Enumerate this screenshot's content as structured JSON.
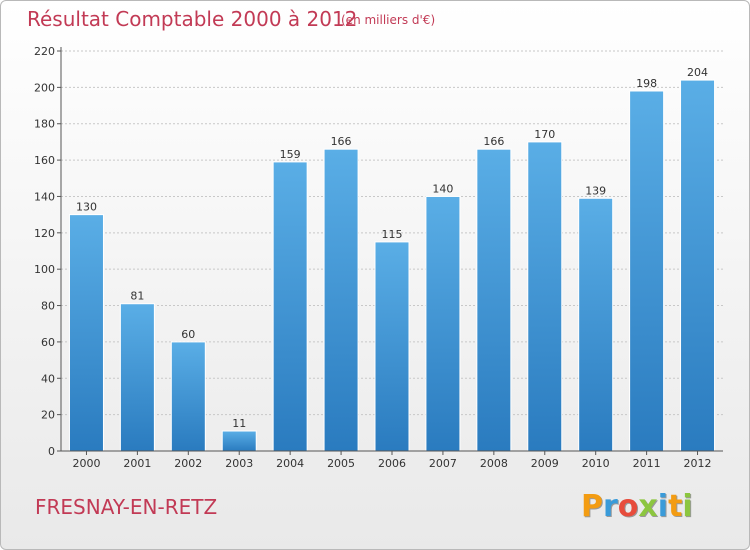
{
  "header": {
    "title": "Résultat Comptable 2000 à 2012",
    "subtitle": "(en milliers d'€)"
  },
  "footer": {
    "commune": "FRESNAY-EN-RETZ",
    "logo_letters": [
      "P",
      "r",
      "o",
      "x",
      "i",
      "t",
      "i"
    ],
    "logo_colors": [
      "#f39c12",
      "#3a9bd9",
      "#e74c3c",
      "#8cc63f",
      "#3a9bd9",
      "#f39c12",
      "#8cc63f"
    ]
  },
  "colors": {
    "bar_top": "#5aaee6",
    "bar_bottom": "#2a7bbf",
    "accent": "#c23a55",
    "grid": "#c8c8c8"
  },
  "chart_data": {
    "type": "bar",
    "categories": [
      "2000",
      "2001",
      "2002",
      "2003",
      "2004",
      "2005",
      "2006",
      "2007",
      "2008",
      "2009",
      "2010",
      "2011",
      "2012"
    ],
    "values": [
      130,
      81,
      60,
      11,
      159,
      166,
      115,
      140,
      166,
      170,
      139,
      198,
      204
    ],
    "yticks": [
      0,
      20,
      40,
      60,
      80,
      100,
      120,
      140,
      160,
      180,
      200,
      220
    ],
    "ylim": [
      0,
      220
    ],
    "grid": true,
    "title": "Résultat Comptable 2000 à 2012",
    "xlabel": "",
    "ylabel": ""
  }
}
